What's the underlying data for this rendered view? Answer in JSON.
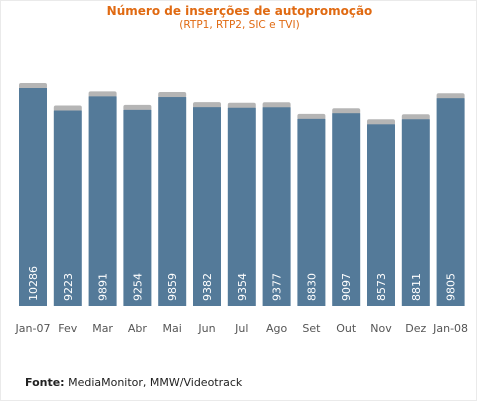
{
  "chart_data": {
    "type": "bar",
    "title": "Número de inserções de autopromoção",
    "subtitle": "(RTP1, RTP2, SIC e TVI)",
    "categories": [
      "Jan-07",
      "Fev",
      "Mar",
      "Abr",
      "Mai",
      "Jun",
      "Jul",
      "Ago",
      "Set",
      "Out",
      "Nov",
      "Dez",
      "Jan-08"
    ],
    "values": [
      10286,
      9223,
      9891,
      9254,
      9859,
      9382,
      9354,
      9377,
      8830,
      9097,
      8573,
      8811,
      9805
    ],
    "data_labels": [
      "10286",
      "9223",
      "9891",
      "9254",
      "9859",
      "9382",
      "9354",
      "9377",
      "8830",
      "9097",
      "8573",
      "8811",
      "9805"
    ],
    "xlabel": "",
    "ylabel": "",
    "ylim": [
      0,
      10286
    ],
    "grid": false,
    "legend": "none",
    "colors": {
      "bar": "#547a99",
      "bar_shadow": "#b5b5b5",
      "title": "#e06a12",
      "label": "#ffffff",
      "tick": "#555555"
    }
  },
  "source": {
    "label": "Fonte:",
    "text": "MediaMonitor, MMW/Videotrack"
  }
}
